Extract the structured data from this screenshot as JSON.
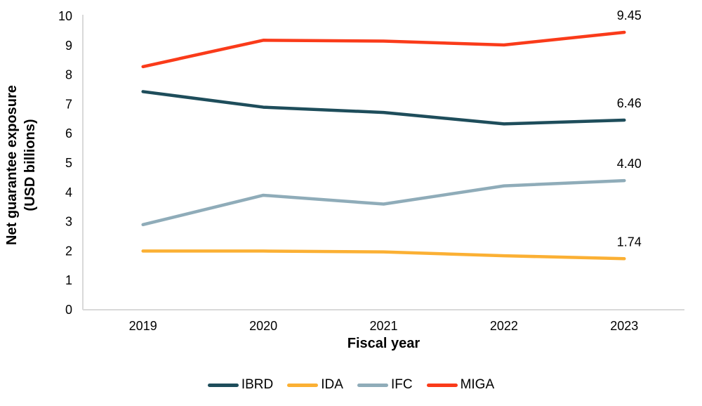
{
  "chart_data": {
    "type": "line",
    "title": "",
    "xlabel": "Fiscal year",
    "ylabel": "Net guarantee exposure (USD billions)",
    "ylabel_line1": "Net guarantee exposure",
    "ylabel_line2": "(USD billions)",
    "categories": [
      "2019",
      "2020",
      "2021",
      "2022",
      "2023"
    ],
    "ylim": [
      0,
      10
    ],
    "ytick_step": 1,
    "grid": false,
    "legend_position": "bottom",
    "axis_color": "#D9D9D9",
    "text_color": "#000000",
    "series": [
      {
        "name": "IBRD",
        "color": "#1E4D5B",
        "values": [
          7.43,
          6.9,
          6.72,
          6.33,
          6.46
        ],
        "end_label": "6.46"
      },
      {
        "name": "IDA",
        "color": "#FBB034",
        "values": [
          2.0,
          2.0,
          1.97,
          1.84,
          1.74
        ],
        "end_label": "1.74"
      },
      {
        "name": "IFC",
        "color": "#8FACB9",
        "values": [
          2.9,
          3.9,
          3.6,
          4.22,
          4.4
        ],
        "end_label": "4.40"
      },
      {
        "name": "MIGA",
        "color": "#FA3B1A",
        "values": [
          8.28,
          9.18,
          9.15,
          9.02,
          9.45
        ],
        "end_label": "9.45"
      }
    ]
  }
}
